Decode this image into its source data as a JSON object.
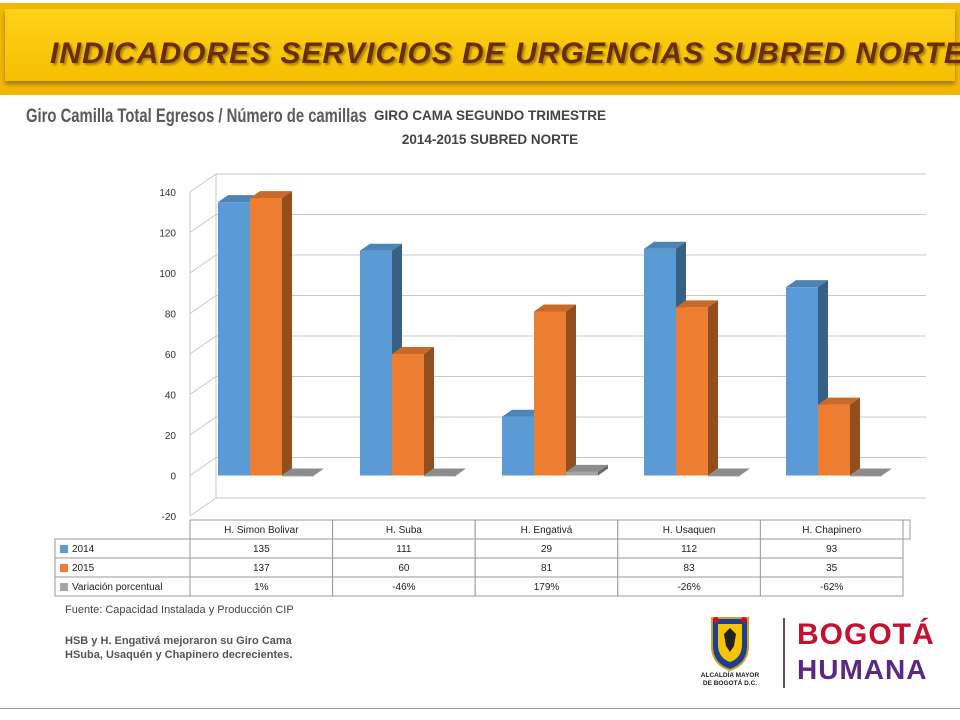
{
  "banner": {
    "title": "INDICADORES SERVICIOS DE URGENCIAS SUBRED NORTE"
  },
  "subtitle": "Giro Camilla  Total Egresos / Número de camillas",
  "chart_data": {
    "type": "bar",
    "title_lines": [
      "GIRO CAMA SEGUNDO TRIMESTRE",
      "2014-2015 SUBRED NORTE"
    ],
    "categories": [
      "H. Simon Bolivar",
      "H. Suba",
      "H. Engativá",
      "H. Usaquen",
      "H. Chapinero"
    ],
    "series": [
      {
        "name": "2014",
        "values": [
          135,
          111,
          29,
          112,
          93
        ],
        "display": [
          "135",
          "111",
          "29",
          "112",
          "93"
        ],
        "color": "#5b9bd5"
      },
      {
        "name": "2015",
        "values": [
          137,
          60,
          81,
          83,
          35
        ],
        "display": [
          "137",
          "60",
          "81",
          "83",
          "35"
        ],
        "color": "#ed7d31"
      },
      {
        "name": "Variación porcentual",
        "values": [
          0.01,
          -0.46,
          1.79,
          -0.26,
          -0.62
        ],
        "display": [
          "1%",
          "-46%",
          "179%",
          "-26%",
          "-62%"
        ],
        "color": "#a5a5a5"
      }
    ],
    "yticks": [
      -20,
      0,
      20,
      40,
      60,
      80,
      100,
      120,
      140
    ],
    "ylim": [
      -20,
      140
    ],
    "grid": true,
    "legend": "data-table"
  },
  "footer": {
    "source": "Fuente: Capacidad Instalada y Producción  CIP",
    "note_line1": "HSB y H. Engativá mejoraron su Giro Cama",
    "note_line2": "HSuba,  Usaquén y Chapinero decrecientes."
  },
  "logos": {
    "alcaldia_line1": "ALCALDÍA MAYOR",
    "alcaldia_line2": "DE BOGOTÁ D.C.",
    "bogota": "BOGOTÁ",
    "humana": "HUMANA"
  },
  "colors": {
    "banner": "#f2b705",
    "banner_text": "#6b2c00",
    "accent_red": "#c8102e",
    "accent_orange": "#f39200"
  }
}
